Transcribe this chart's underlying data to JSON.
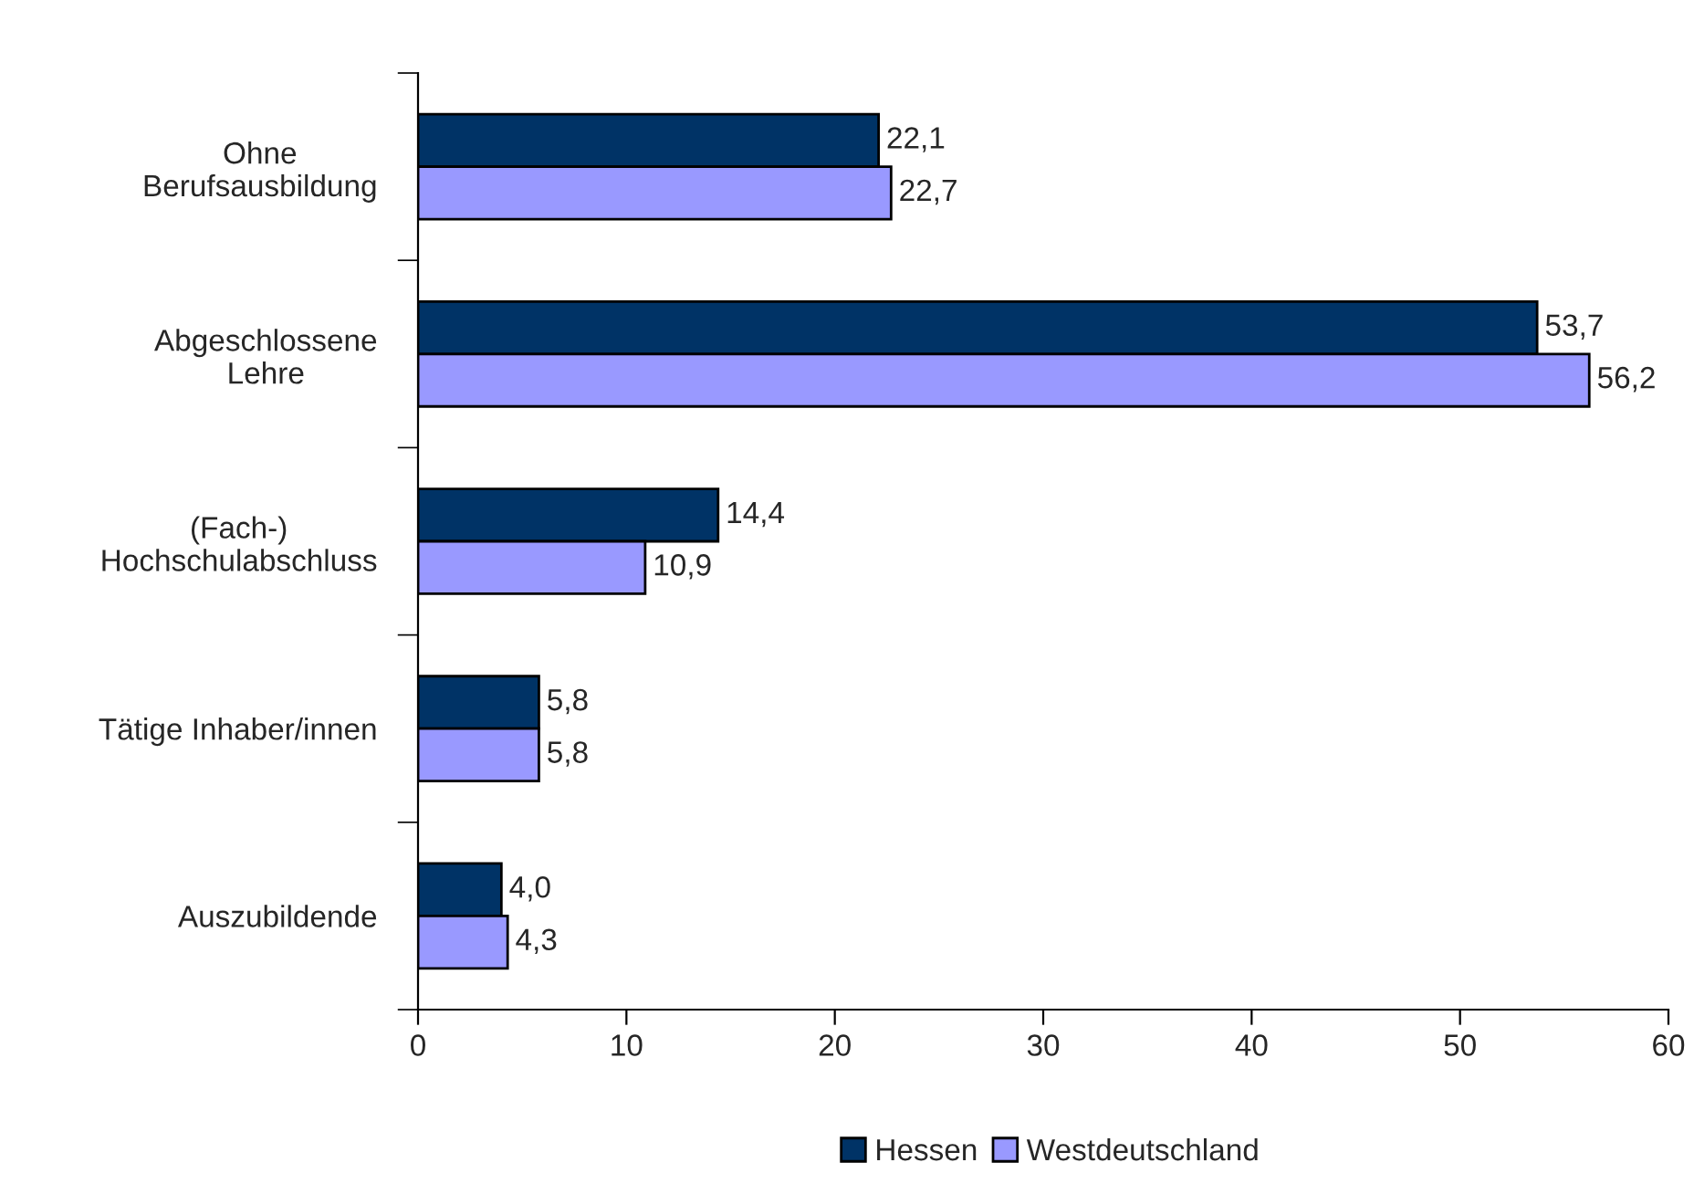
{
  "chart_data": {
    "type": "bar",
    "orientation": "horizontal",
    "categories": [
      "Ohne\nBerufsausbildung",
      "Abgeschlossene\nLehre",
      "(Fach-)\nHochschulabschluss",
      "Tätige Inhaber/innen",
      "Auszubildende"
    ],
    "series": [
      {
        "name": "Hessen",
        "color": "#003366",
        "values": [
          22.1,
          53.7,
          14.4,
          5.8,
          4.0
        ],
        "value_labels": [
          "22,1",
          "53,7",
          "14,4",
          "5,8",
          "4,0"
        ]
      },
      {
        "name": "Westdeutschland",
        "color": "#9999ff",
        "values": [
          22.7,
          56.2,
          10.9,
          5.8,
          4.3
        ],
        "value_labels": [
          "22,7",
          "56,2",
          "10,9",
          "5,8",
          "4,3"
        ]
      }
    ],
    "xlim": [
      0,
      60
    ],
    "xticks": [
      0,
      10,
      20,
      30,
      40,
      50,
      60
    ],
    "grid": false,
    "legend": "bottom"
  }
}
